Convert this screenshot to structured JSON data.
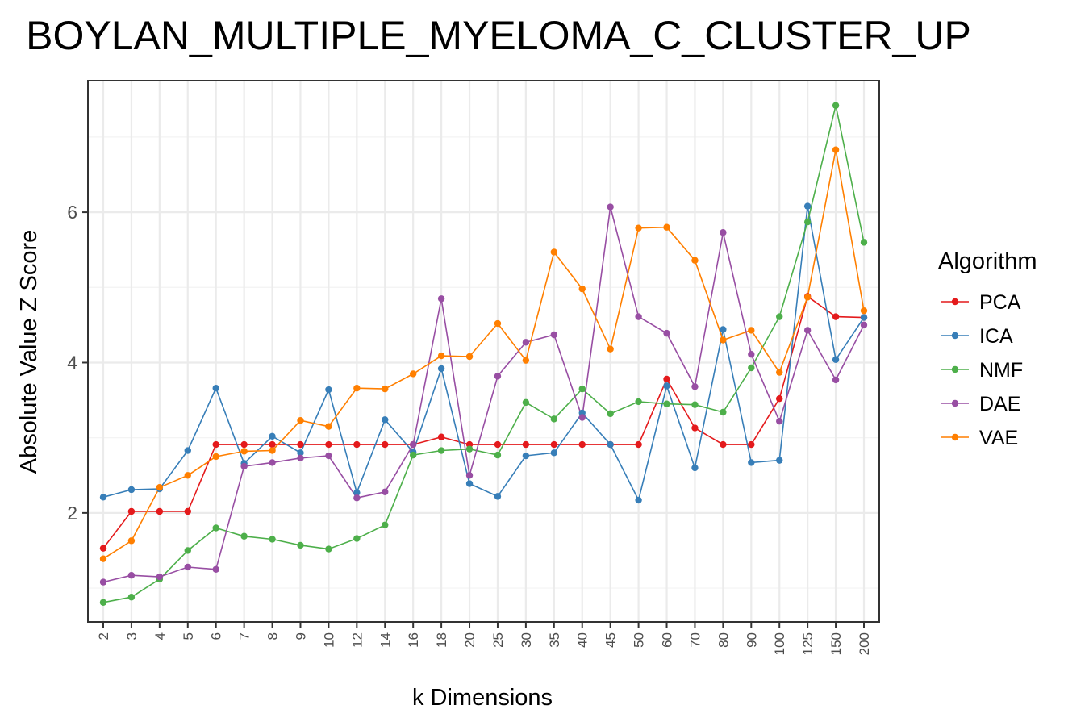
{
  "chart_data": {
    "type": "line",
    "title": "BOYLAN_MULTIPLE_MYELOMA_C_CLUSTER_UP",
    "xlabel": "k Dimensions",
    "ylabel": "Absolute Value Z Score",
    "legend_title": "Algorithm",
    "legend_position": "right",
    "grid": true,
    "ylim": [
      0.55,
      7.75
    ],
    "yticks": [
      2,
      4,
      6
    ],
    "categories": [
      "2",
      "3",
      "4",
      "5",
      "6",
      "7",
      "8",
      "9",
      "10",
      "12",
      "14",
      "16",
      "18",
      "20",
      "25",
      "30",
      "35",
      "40",
      "45",
      "50",
      "60",
      "70",
      "80",
      "90",
      "100",
      "125",
      "150",
      "200"
    ],
    "series": [
      {
        "name": "PCA",
        "color": "#e41a1c",
        "values": [
          1.53,
          2.02,
          2.02,
          2.02,
          2.91,
          2.91,
          2.91,
          2.91,
          2.91,
          2.91,
          2.91,
          2.91,
          3.01,
          2.91,
          2.91,
          2.91,
          2.91,
          2.91,
          2.91,
          2.91,
          3.78,
          3.13,
          2.91,
          2.91,
          3.52,
          4.88,
          4.61,
          4.6
        ]
      },
      {
        "name": "ICA",
        "color": "#377eb8",
        "values": [
          2.21,
          2.31,
          2.32,
          2.83,
          3.66,
          2.66,
          3.02,
          2.8,
          3.64,
          2.27,
          3.24,
          2.81,
          3.92,
          2.39,
          2.22,
          2.76,
          2.8,
          3.33,
          2.91,
          2.17,
          3.69,
          2.6,
          4.44,
          2.67,
          2.7,
          6.08,
          4.04,
          4.6
        ]
      },
      {
        "name": "NMF",
        "color": "#4daf4a",
        "values": [
          0.81,
          0.88,
          1.12,
          1.5,
          1.8,
          1.69,
          1.65,
          1.57,
          1.52,
          1.66,
          1.84,
          2.77,
          2.83,
          2.85,
          2.77,
          3.47,
          3.25,
          3.65,
          3.32,
          3.48,
          3.45,
          3.44,
          3.34,
          3.93,
          4.61,
          5.87,
          7.42,
          5.6
        ]
      },
      {
        "name": "DAE",
        "color": "#984ea3",
        "values": [
          1.08,
          1.17,
          1.15,
          1.28,
          1.25,
          2.62,
          2.67,
          2.73,
          2.76,
          2.2,
          2.28,
          2.91,
          4.85,
          2.5,
          3.82,
          4.27,
          4.37,
          3.27,
          6.07,
          4.61,
          4.39,
          3.68,
          5.73,
          4.11,
          3.22,
          4.43,
          3.77,
          4.5
        ]
      },
      {
        "name": "VAE",
        "color": "#ff7f00",
        "values": [
          1.39,
          1.63,
          2.34,
          2.5,
          2.75,
          2.82,
          2.83,
          3.23,
          3.15,
          3.66,
          3.65,
          3.85,
          4.09,
          4.08,
          4.52,
          4.03,
          5.47,
          4.98,
          4.18,
          5.79,
          5.8,
          5.36,
          4.3,
          4.43,
          3.87,
          4.87,
          6.83,
          4.69
        ]
      }
    ]
  }
}
